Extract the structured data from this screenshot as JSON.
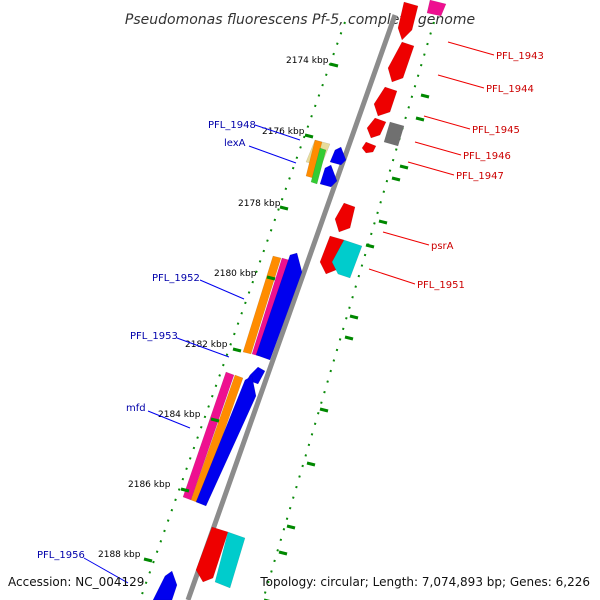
{
  "title": "Pseudomonas fluorescens Pf-5, complete genome",
  "footer": {
    "accession": "Accession: NC_004129",
    "topology": "Topology: circular; Length: 7,074,893 bp; Genes: 6,226"
  },
  "colors": {
    "backbone": "#8c8c8c",
    "forward_gene": "#0000ee",
    "reverse_gene": "#ee0000",
    "left_label": "#0000aa",
    "right_label": "#cc0000",
    "gc_dots": "#008800",
    "orange": "#ff8c00",
    "magenta": "#ee1090",
    "cyan": "#00cccc",
    "grey": "#707070",
    "tan": "#e8dc9a",
    "green": "#33cc33"
  },
  "ticks": [
    {
      "kbp": 2174,
      "label": "2174 kbp"
    },
    {
      "kbp": 2176,
      "label": "2176 kbp"
    },
    {
      "kbp": 2178,
      "label": "2178 kbp"
    },
    {
      "kbp": 2180,
      "label": "2180 kbp"
    },
    {
      "kbp": 2182,
      "label": "2182 kbp"
    },
    {
      "kbp": 2184,
      "label": "2184 kbp"
    },
    {
      "kbp": 2186,
      "label": "2186 kbp"
    },
    {
      "kbp": 2188,
      "label": "2188 kbp"
    }
  ],
  "left_labels": [
    {
      "name": "PFL_1948"
    },
    {
      "name": "lexA"
    },
    {
      "name": "PFL_1952"
    },
    {
      "name": "PFL_1953"
    },
    {
      "name": "mfd"
    },
    {
      "name": "PFL_1956"
    }
  ],
  "right_labels": [
    {
      "name": "PFL_1943"
    },
    {
      "name": "PFL_1944"
    },
    {
      "name": "PFL_1945"
    },
    {
      "name": "PFL_1946"
    },
    {
      "name": "PFL_1947"
    },
    {
      "name": "psrA"
    },
    {
      "name": "PFL_1951"
    }
  ]
}
